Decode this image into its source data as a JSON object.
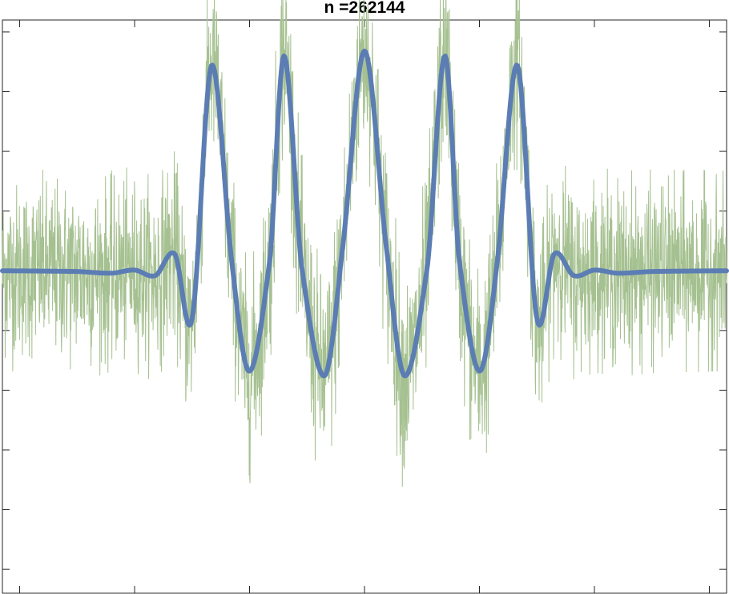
{
  "chart_data": {
    "type": "line",
    "title": "n =262144",
    "xlabel": "",
    "ylabel": "",
    "xlim": [
      -3.15,
      3.15
    ],
    "ylim": [
      -1.35,
      1.05
    ],
    "grid": false,
    "legend": "none",
    "xticks": [
      -3,
      -2,
      -1,
      0,
      1,
      2,
      3
    ],
    "yticks": [
      -1.25,
      -1.0,
      -0.75,
      -0.5,
      -0.25,
      0,
      0.25,
      0.5,
      0.75,
      1.0
    ],
    "series": [
      {
        "kind": "noisy-signal",
        "color": "#a6c191",
        "x_range": [
          -3.15,
          3.15
        ],
        "smooth_component": "fitted",
        "noise_envelope": {
          "x": [
            -3.15,
            -1.3,
            -1.0,
            -0.7,
            -0.35,
            0.0,
            0.35,
            0.7,
            1.0,
            1.3,
            3.15
          ],
          "amplitude": [
            0.42,
            0.44,
            0.47,
            0.48,
            0.48,
            0.48,
            0.48,
            0.48,
            0.47,
            0.44,
            0.42
          ]
        }
      },
      {
        "kind": "fitted",
        "color": "#5b7db4",
        "x": [
          -3.15,
          -2.5,
          -2.2,
          -2.0,
          -1.82,
          -1.65,
          -1.5,
          -1.33,
          -1.15,
          -1.0,
          -0.82,
          -0.7,
          -0.55,
          -0.35,
          -0.2,
          0.0,
          0.2,
          0.35,
          0.55,
          0.7,
          0.82,
          1.0,
          1.15,
          1.33,
          1.5,
          1.65,
          1.82,
          2.0,
          2.2,
          2.5,
          3.15
        ],
        "y": [
          0.0,
          -0.003,
          -0.01,
          0.003,
          -0.02,
          0.07,
          -0.2,
          0.86,
          0.02,
          -0.42,
          0.06,
          0.9,
          0.03,
          -0.44,
          0.06,
          0.92,
          0.06,
          -0.44,
          0.03,
          0.9,
          0.06,
          -0.42,
          0.02,
          0.86,
          -0.2,
          0.07,
          -0.02,
          0.003,
          -0.01,
          -0.003,
          0.0
        ]
      }
    ]
  }
}
